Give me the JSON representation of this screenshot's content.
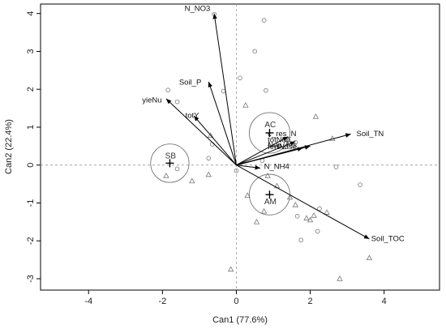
{
  "chart_data": {
    "type": "scatter",
    "subtype": "canonical-discriminant-biplot",
    "xlabel": "Can1 (77.6%)",
    "ylabel": "Can2 (22.4%)",
    "xlim": [
      -5.3,
      5.5
    ],
    "ylim": [
      -3.3,
      4.25
    ],
    "xticks": [
      -4,
      -2,
      0,
      2,
      4
    ],
    "yticks": [
      -3,
      -2,
      -1,
      0,
      1,
      2,
      3,
      4
    ],
    "grid": false,
    "reference_lines": {
      "x": 0,
      "y": 0,
      "style": "dashed"
    },
    "groups": [
      {
        "label": "SB",
        "centroid": [
          -1.8,
          0.05
        ],
        "radius": 0.52,
        "label_pos": [
          -1.78,
          0.18
        ]
      },
      {
        "label": "AC",
        "centroid": [
          0.9,
          0.85
        ],
        "radius": 0.55,
        "label_pos": [
          0.92,
          1.0
        ]
      },
      {
        "label": "AM",
        "centroid": [
          0.9,
          -0.78
        ],
        "radius": 0.55,
        "label_pos": [
          0.92,
          -1.03
        ]
      }
    ],
    "vectors": [
      {
        "label": "N_NO3",
        "x": -0.6,
        "y": 4.0,
        "label_pos": [
          -1.4,
          4.12
        ]
      },
      {
        "label": "Soil_P",
        "x": -0.75,
        "y": 2.2,
        "label_pos": [
          -1.55,
          2.18
        ]
      },
      {
        "label": "yieNu",
        "x": -1.9,
        "y": 1.75,
        "label_pos": [
          -2.55,
          1.7
        ]
      },
      {
        "label": "totY",
        "x": -1.15,
        "y": 1.3,
        "label_pos": [
          -1.38,
          1.3
        ]
      },
      {
        "label": "Soil_TN",
        "x": 3.1,
        "y": 0.82,
        "label_pos": [
          3.25,
          0.82
        ]
      },
      {
        "label": "Soil_TOC",
        "x": 3.6,
        "y": -1.95,
        "label_pos": [
          3.65,
          -1.95
        ]
      },
      {
        "label": "N_NH4",
        "x": 0.65,
        "y": -0.08,
        "label_pos": [
          0.75,
          -0.05
        ]
      },
      {
        "label": "c_res_N",
        "x": 1.4,
        "y": 0.75,
        "label_pos": [
          0.85,
          0.82
        ]
      },
      {
        "label": "totNup",
        "x": 1.6,
        "y": 0.62,
        "label_pos": [
          0.85,
          0.66
        ]
      },
      {
        "label": "Nup_res",
        "x": 2.0,
        "y": 0.5,
        "label_pos": [
          0.85,
          0.52
        ]
      },
      {
        "label": "fertNuse",
        "x": 1.8,
        "y": 0.45,
        "label_pos": [
          0.85,
          0.48
        ]
      }
    ],
    "points_circle": [
      [
        -0.6,
        3.98
      ],
      [
        0.75,
        3.82
      ],
      [
        0.5,
        3.0
      ],
      [
        0.1,
        2.3
      ],
      [
        -1.85,
        1.98
      ],
      [
        -1.6,
        1.67
      ],
      [
        -0.35,
        1.95
      ],
      [
        0.8,
        1.97
      ],
      [
        -0.75,
        0.18
      ],
      [
        -0.65,
        0.55
      ],
      [
        -1.6,
        -0.1
      ],
      [
        0.0,
        -0.15
      ],
      [
        2.7,
        -0.05
      ],
      [
        1.6,
        0.6
      ],
      [
        3.35,
        -0.52
      ],
      [
        2.25,
        -1.15
      ],
      [
        1.65,
        -1.35
      ],
      [
        2.2,
        -1.75
      ],
      [
        1.75,
        -1.98
      ],
      [
        1.35,
        0.58
      ],
      [
        0.7,
        0.12
      ]
    ],
    "points_triangle": [
      [
        0.25,
        1.58
      ],
      [
        2.15,
        1.28
      ],
      [
        -0.7,
        0.78
      ],
      [
        -1.9,
        -0.28
      ],
      [
        -1.2,
        -0.42
      ],
      [
        -0.75,
        -0.25
      ],
      [
        0.55,
        -1.5
      ],
      [
        0.3,
        -0.8
      ],
      [
        1.1,
        -0.55
      ],
      [
        1.45,
        -0.85
      ],
      [
        0.75,
        -1.22
      ],
      [
        0.85,
        -0.28
      ],
      [
        2.0,
        -1.45
      ],
      [
        1.9,
        -1.4
      ],
      [
        2.1,
        -1.33
      ],
      [
        2.45,
        -1.25
      ],
      [
        3.6,
        -2.45
      ],
      [
        2.8,
        -3.0
      ],
      [
        -0.15,
        -2.75
      ],
      [
        2.6,
        0.7
      ],
      [
        1.6,
        -1.05
      ]
    ]
  }
}
